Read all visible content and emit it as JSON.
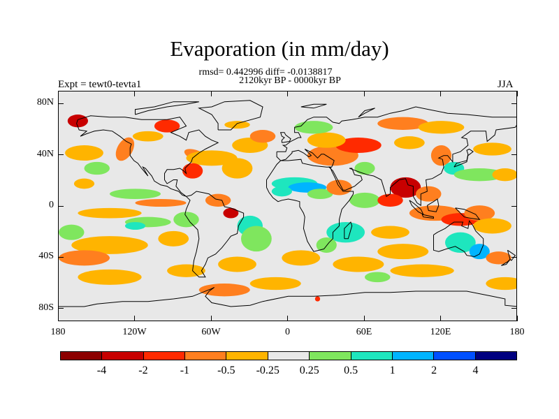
{
  "title": "Evaporation (in mm/day)",
  "stats": "rmsd= 0.442996 diff= -0.0138817",
  "period": "2120kyr BP - 0000kyr BP",
  "expt_label": "Expt = tewt0-tevta1",
  "season": "JJA",
  "y_labels": [
    "80N",
    "40N",
    "0",
    "40S",
    "80S"
  ],
  "x_labels": [
    "180",
    "120W",
    "60W",
    "0",
    "60E",
    "120E",
    "180"
  ],
  "colorbar": {
    "colors": [
      "#8c0000",
      "#c80000",
      "#ff2a00",
      "#ff7f1f",
      "#ffb400",
      "#e8e8e8",
      "#7fe65e",
      "#1ee6be",
      "#00b4ff",
      "#0050ff",
      "#000080"
    ],
    "labels": [
      "-4",
      "-2",
      "-1",
      "-0.5",
      "-0.25",
      "0.25",
      "0.5",
      "1",
      "2",
      "4"
    ]
  },
  "chart_data": {
    "type": "heatmap",
    "title": "Evaporation (in mm/day)",
    "variable": "Evaporation",
    "units": "mm/day",
    "xlim": [
      -180,
      180
    ],
    "ylim": [
      -90,
      90
    ],
    "x_ticks": [
      "180",
      "120W",
      "60W",
      "0",
      "60E",
      "120E",
      "180"
    ],
    "y_ticks": [
      "80N",
      "40N",
      "0",
      "40S",
      "80S"
    ],
    "levels": [
      -4,
      -2,
      -1,
      -0.5,
      -0.25,
      0.25,
      0.5,
      1,
      2,
      4
    ]
  }
}
